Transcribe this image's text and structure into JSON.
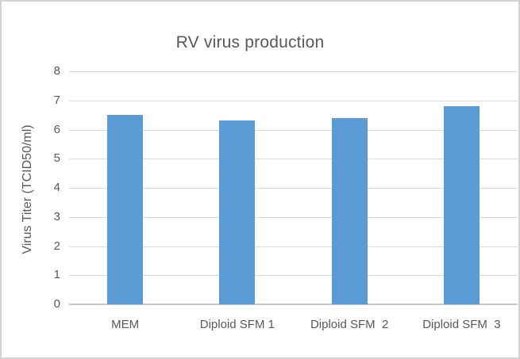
{
  "chart_data": {
    "type": "bar",
    "title": "RV virus production",
    "categories": [
      "MEM",
      "Diploid SFM 1",
      "Diploid SFM  2",
      "Diploid SFM  3"
    ],
    "values": [
      6.5,
      6.3,
      6.4,
      6.8
    ],
    "xlabel": "",
    "ylabel": "Virus Titer (TCID50/ml)",
    "ylim": [
      0,
      8
    ],
    "yticks": [
      0,
      1,
      2,
      3,
      4,
      5,
      6,
      7,
      8
    ],
    "grid": "horizontal",
    "legend": "none",
    "colors": {
      "bar": "#5B9BD5",
      "gridline": "#D9D9D9",
      "axis_line": "#C9C9C9",
      "text": "#595959",
      "background": "#FFFFFF",
      "frame_border": "#D3D3D3"
    }
  }
}
